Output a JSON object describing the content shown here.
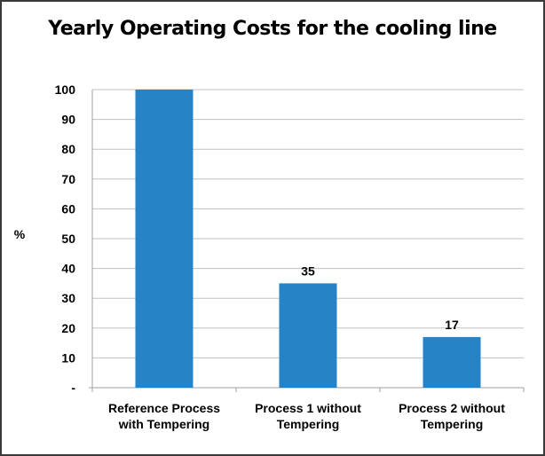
{
  "chart_data": {
    "type": "bar",
    "title": "Yearly Operating Costs for the cooling line",
    "ylabel": "%",
    "xlabel": "",
    "categories": [
      [
        "Reference Process",
        "with Tempering"
      ],
      [
        "Process 1 without",
        "Tempering"
      ],
      [
        "Process 2 without",
        "Tempering"
      ]
    ],
    "values": [
      100,
      35,
      17
    ],
    "data_labels": [
      "",
      "35",
      "17"
    ],
    "ylim": [
      0,
      100
    ],
    "yticks": [
      0,
      10,
      20,
      30,
      40,
      50,
      60,
      70,
      80,
      90,
      100
    ],
    "ytick_labels": [
      "-",
      "10",
      "20",
      "30",
      "40",
      "50",
      "60",
      "70",
      "80",
      "90",
      "100"
    ],
    "grid": true,
    "bar_color": "#2683c6",
    "grid_color": "#c0c0c0"
  }
}
